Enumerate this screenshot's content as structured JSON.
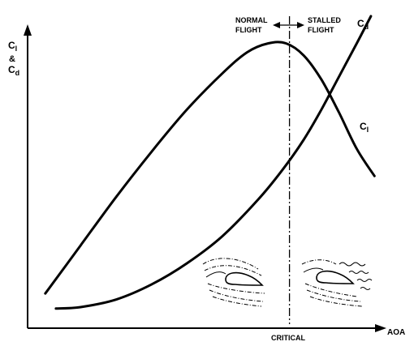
{
  "chart_data": {
    "type": "line",
    "xlabel": "AOA",
    "ylabel": {
      "a": "C",
      "a_sub": "l",
      "amp": "&",
      "b": "C",
      "b_sub": "d"
    },
    "xlim": [
      0,
      100
    ],
    "ylim": [
      0,
      100
    ],
    "grid": false,
    "critical": {
      "label": "CRITICAL",
      "x": 74
    },
    "regions": {
      "left_top": "NORMAL",
      "left_bottom": "FLIGHT",
      "right_top": "STALLED",
      "right_bottom": "FLIGHT"
    },
    "series": [
      {
        "name": "l",
        "prefix": "C",
        "points": [
          [
            5,
            8
          ],
          [
            15,
            24
          ],
          [
            25,
            40
          ],
          [
            35,
            55
          ],
          [
            45,
            69
          ],
          [
            55,
            81
          ],
          [
            62,
            88
          ],
          [
            68,
            91
          ],
          [
            73,
            91
          ],
          [
            78,
            87
          ],
          [
            83,
            79
          ],
          [
            88,
            68
          ],
          [
            93,
            56
          ],
          [
            98,
            47
          ]
        ]
      },
      {
        "name": "d",
        "prefix": "C",
        "points": [
          [
            8,
            3
          ],
          [
            15,
            3.5
          ],
          [
            25,
            6
          ],
          [
            35,
            11
          ],
          [
            45,
            18
          ],
          [
            55,
            27
          ],
          [
            65,
            39
          ],
          [
            72,
            49
          ],
          [
            78,
            59
          ],
          [
            83,
            69
          ],
          [
            88,
            80
          ],
          [
            93,
            91
          ],
          [
            97,
            100
          ]
        ]
      }
    ],
    "illustrations": [
      "airfoil-smooth-flow",
      "airfoil-separated-flow"
    ]
  }
}
